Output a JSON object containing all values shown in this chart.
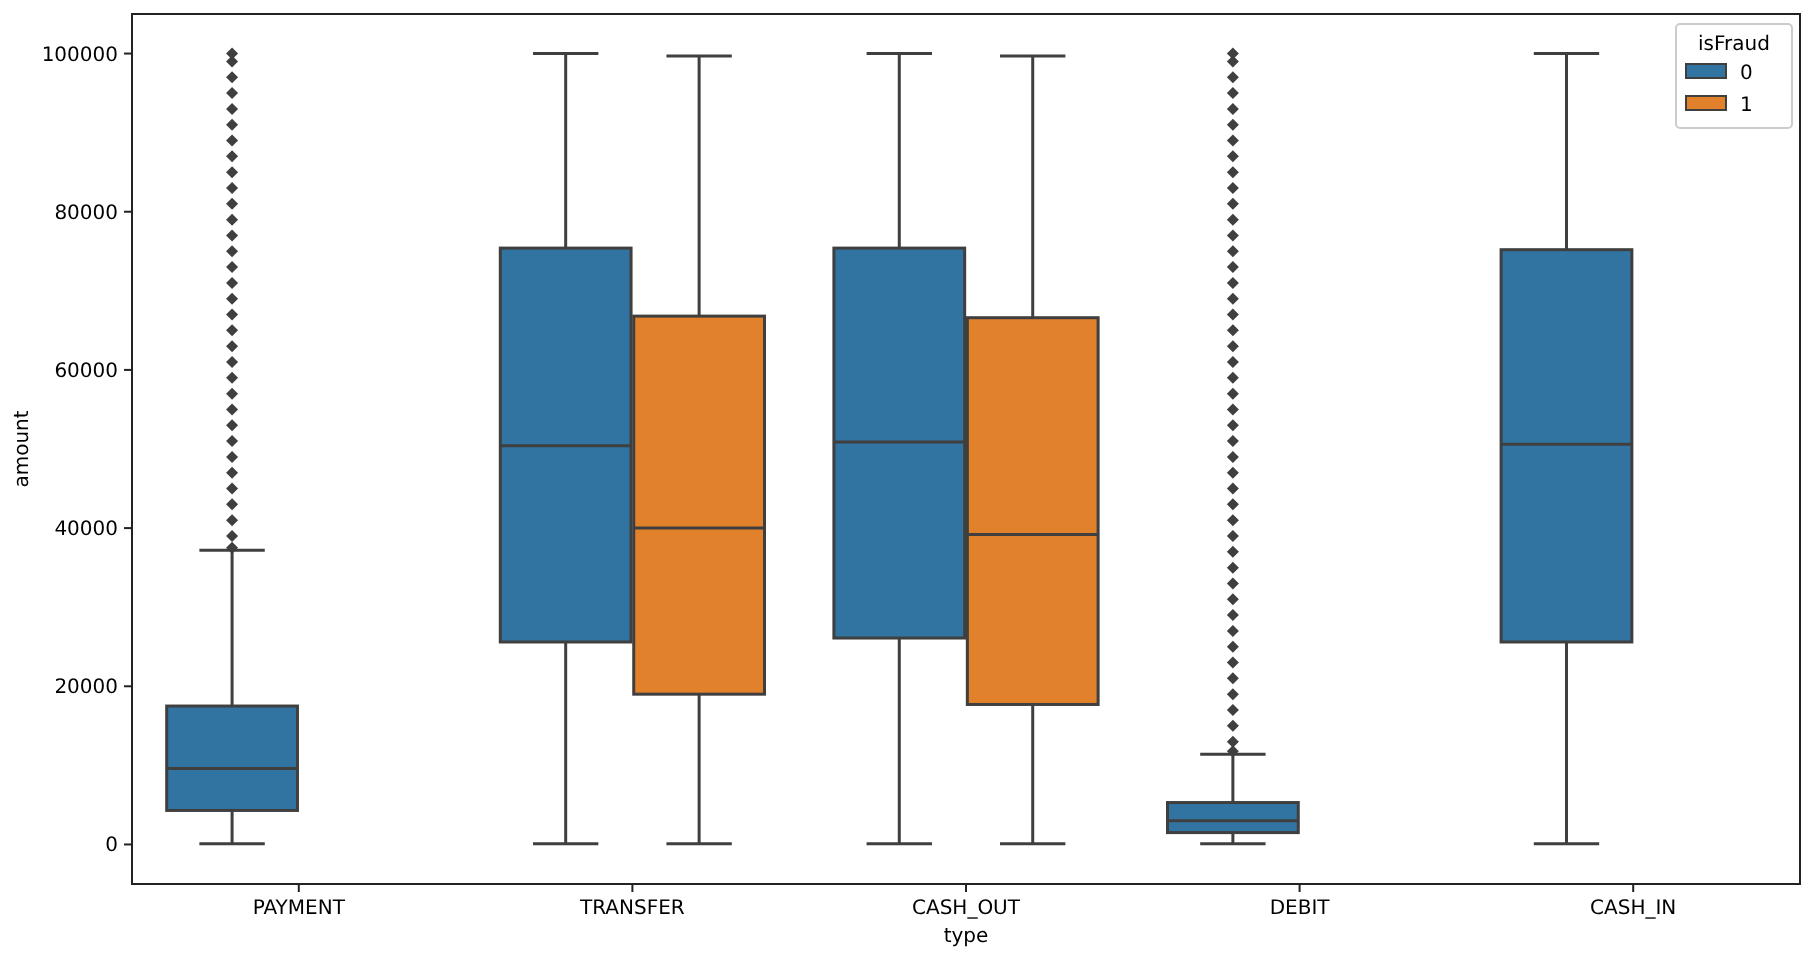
{
  "chart_data": {
    "type": "box",
    "xlabel": "type",
    "ylabel": "amount",
    "legend_title": "isFraud",
    "legend": "top right",
    "categories": [
      "PAYMENT",
      "TRANSFER",
      "CASH_OUT",
      "DEBIT",
      "CASH_IN"
    ],
    "ylim": [
      -5000,
      105000
    ],
    "yticks": [
      0,
      20000,
      40000,
      60000,
      80000,
      100000
    ],
    "series": [
      {
        "name": "0",
        "color": "#3274a1",
        "boxes": [
          {
            "low": 100,
            "q1": 4300,
            "median": 9600,
            "q3": 17500,
            "high": 37200,
            "outliers": [
              37500,
              39000,
              41000,
              43000,
              45000,
              47000,
              49000,
              51000,
              53000,
              55000,
              57000,
              59000,
              61000,
              63000,
              65000,
              67000,
              69000,
              71000,
              73000,
              75000,
              77000,
              79000,
              81000,
              83000,
              85000,
              87000,
              89000,
              91000,
              93000,
              95000,
              97000,
              99000,
              100000
            ]
          },
          {
            "low": 100,
            "q1": 25600,
            "median": 50400,
            "q3": 75400,
            "high": 100000
          },
          {
            "low": 100,
            "q1": 26100,
            "median": 50900,
            "q3": 75400,
            "high": 100000
          },
          {
            "low": 100,
            "q1": 1500,
            "median": 3000,
            "q3": 5300,
            "high": 11400,
            "outliers": [
              11800,
              13000,
              15000,
              17000,
              19000,
              21000,
              23000,
              25000,
              27000,
              29000,
              31000,
              33000,
              35000,
              37000,
              39000,
              41000,
              43000,
              45000,
              47000,
              49000,
              51000,
              53000,
              55000,
              57000,
              59000,
              61000,
              63000,
              65000,
              67000,
              69000,
              71000,
              73000,
              75000,
              77000,
              79000,
              81000,
              83000,
              85000,
              87000,
              89000,
              91000,
              93000,
              95000,
              97000,
              99000,
              100000
            ]
          },
          {
            "low": 100,
            "q1": 25600,
            "median": 50600,
            "q3": 75200,
            "high": 100000
          }
        ]
      },
      {
        "name": "1",
        "color": "#e1812c",
        "boxes": [
          null,
          {
            "low": 100,
            "q1": 19000,
            "median": 40000,
            "q3": 66800,
            "high": 99700
          },
          {
            "low": 100,
            "q1": 17700,
            "median": 39200,
            "q3": 66600,
            "high": 99700
          },
          null,
          null
        ]
      }
    ]
  }
}
